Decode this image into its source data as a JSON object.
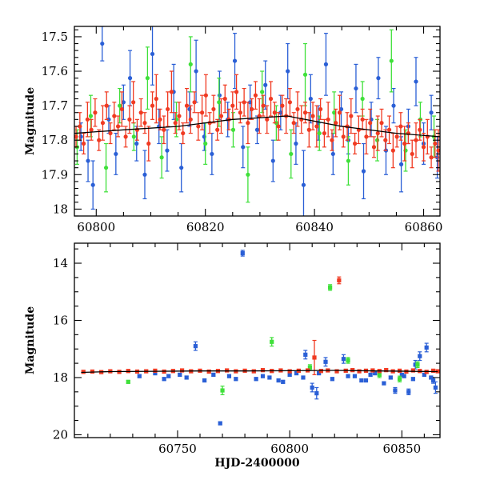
{
  "chart_data": [
    {
      "type": "scatter",
      "panel": "top",
      "title": "",
      "ylabel": "Magnitude",
      "xlabel": "",
      "xlim": [
        60796,
        60863
      ],
      "ylim": [
        18.02,
        17.47
      ],
      "y_inverted": true,
      "xticks": [
        60800,
        60820,
        60840,
        60860
      ],
      "yticks": [
        17.5,
        17.6,
        17.7,
        17.8,
        17.9,
        18.0
      ],
      "ytick_labels": [
        "17.5",
        "17.6",
        "17.7",
        "17.8",
        "17.9",
        "18"
      ],
      "trend": {
        "color": "#000000",
        "x": [
          60796,
          60805,
          60815,
          60825,
          60835,
          60845,
          60855,
          60863
        ],
        "y": [
          17.78,
          17.77,
          17.76,
          17.74,
          17.73,
          17.76,
          17.78,
          17.79
        ]
      },
      "series": [
        {
          "color": "#2a5fd6",
          "x": [
            60797.2,
            60798.5,
            60799.4,
            60801.1,
            60802.3,
            60803.6,
            60805.0,
            60806.2,
            60807.4,
            60808.9,
            60810.3,
            60811.5,
            60813.0,
            60814.2,
            60815.6,
            60817.1,
            60818.3,
            60819.8,
            60821.2,
            60822.6,
            60824.1,
            60825.4,
            60826.9,
            60828.2,
            60829.5,
            60831.0,
            60832.4,
            60833.8,
            60835.1,
            60836.6,
            60838.0,
            60839.3,
            60840.7,
            60842.1,
            60843.4,
            60844.9,
            60846.2,
            60847.6,
            60849.0,
            60850.4,
            60851.7,
            60853.1,
            60854.5,
            60855.9,
            60857.2,
            60858.6,
            60860.0,
            60861.4,
            60862.5
          ],
          "y": [
            17.79,
            17.86,
            17.93,
            17.52,
            17.74,
            17.84,
            17.69,
            17.62,
            17.81,
            17.9,
            17.55,
            17.76,
            17.83,
            17.66,
            17.88,
            17.71,
            17.6,
            17.79,
            17.84,
            17.67,
            17.74,
            17.57,
            17.82,
            17.69,
            17.77,
            17.64,
            17.86,
            17.72,
            17.6,
            17.81,
            17.93,
            17.68,
            17.75,
            17.58,
            17.84,
            17.71,
            17.8,
            17.65,
            17.89,
            17.74,
            17.62,
            17.83,
            17.7,
            17.87,
            17.76,
            17.63,
            17.81,
            17.72,
            17.85
          ],
          "yerr": [
            0.04,
            0.06,
            0.07,
            0.05,
            0.04,
            0.06,
            0.05,
            0.08,
            0.05,
            0.07,
            0.09,
            0.05,
            0.06,
            0.08,
            0.07,
            0.05,
            0.09,
            0.04,
            0.06,
            0.07,
            0.05,
            0.08,
            0.06,
            0.05,
            0.04,
            0.07,
            0.06,
            0.05,
            0.08,
            0.06,
            0.1,
            0.07,
            0.05,
            0.09,
            0.06,
            0.05,
            0.04,
            0.07,
            0.08,
            0.05,
            0.06,
            0.07,
            0.05,
            0.08,
            0.05,
            0.07,
            0.06,
            0.05,
            0.06
          ]
        },
        {
          "color": "#3fe03a",
          "x": [
            60796.5,
            60799.0,
            60801.8,
            60804.3,
            60806.9,
            60809.4,
            60812.0,
            60814.7,
            60817.3,
            60820.0,
            60822.5,
            60825.1,
            60827.8,
            60830.4,
            60833.0,
            60835.7,
            60838.3,
            60840.9,
            60843.6,
            60846.2,
            60848.8,
            60851.5,
            60854.1,
            60856.7,
            60859.4,
            60861.9
          ],
          "y": [
            17.82,
            17.73,
            17.88,
            17.7,
            17.79,
            17.62,
            17.85,
            17.74,
            17.58,
            17.81,
            17.69,
            17.77,
            17.9,
            17.66,
            17.75,
            17.84,
            17.61,
            17.78,
            17.72,
            17.86,
            17.68,
            17.8,
            17.57,
            17.83,
            17.74,
            17.79
          ],
          "yerr": [
            0.05,
            0.06,
            0.07,
            0.05,
            0.04,
            0.09,
            0.06,
            0.05,
            0.08,
            0.06,
            0.07,
            0.05,
            0.08,
            0.06,
            0.05,
            0.07,
            0.09,
            0.05,
            0.06,
            0.07,
            0.05,
            0.06,
            0.09,
            0.06,
            0.05,
            0.06
          ]
        },
        {
          "color": "#f03a22",
          "x": [
            60796.3,
            60797.0,
            60797.7,
            60798.4,
            60799.1,
            60799.8,
            60800.5,
            60801.2,
            60801.9,
            60802.6,
            60803.3,
            60804.0,
            60804.7,
            60805.4,
            60806.1,
            60806.8,
            60807.5,
            60808.2,
            60808.9,
            60809.6,
            60810.3,
            60811.0,
            60811.7,
            60812.4,
            60813.1,
            60813.8,
            60814.5,
            60815.2,
            60815.9,
            60816.6,
            60817.3,
            60818.0,
            60818.7,
            60819.4,
            60820.1,
            60820.8,
            60821.5,
            60822.2,
            60822.9,
            60823.6,
            60824.3,
            60825.0,
            60825.7,
            60826.4,
            60827.1,
            60827.8,
            60828.5,
            60829.2,
            60829.9,
            60830.6,
            60831.3,
            60832.0,
            60832.7,
            60833.4,
            60834.1,
            60834.8,
            60835.5,
            60836.2,
            60836.9,
            60837.6,
            60838.3,
            60839.0,
            60839.7,
            60840.4,
            60841.1,
            60841.8,
            60842.5,
            60843.2,
            60843.9,
            60844.6,
            60845.3,
            60846.0,
            60846.7,
            60847.4,
            60848.1,
            60848.8,
            60849.5,
            60850.2,
            60850.9,
            60851.6,
            60852.3,
            60853.0,
            60853.7,
            60854.4,
            60855.1,
            60855.8,
            60856.5,
            60857.2,
            60857.9,
            60858.6,
            60859.3,
            60860.0,
            60860.7,
            60861.4,
            60862.1,
            60862.7
          ],
          "y": [
            17.79,
            17.76,
            17.81,
            17.74,
            17.77,
            17.72,
            17.8,
            17.75,
            17.7,
            17.78,
            17.73,
            17.76,
            17.71,
            17.79,
            17.74,
            17.69,
            17.77,
            17.72,
            17.75,
            17.81,
            17.7,
            17.68,
            17.74,
            17.77,
            17.71,
            17.66,
            17.75,
            17.73,
            17.78,
            17.7,
            17.74,
            17.69,
            17.76,
            17.72,
            17.67,
            17.75,
            17.71,
            17.77,
            17.73,
            17.68,
            17.74,
            17.7,
            17.66,
            17.72,
            17.69,
            17.75,
            17.71,
            17.67,
            17.73,
            17.7,
            17.74,
            17.68,
            17.72,
            17.76,
            17.7,
            17.73,
            17.69,
            17.75,
            17.71,
            17.74,
            17.72,
            17.77,
            17.73,
            17.76,
            17.71,
            17.78,
            17.74,
            17.8,
            17.75,
            17.72,
            17.79,
            17.76,
            17.73,
            17.81,
            17.77,
            17.74,
            17.79,
            17.75,
            17.82,
            17.78,
            17.75,
            17.8,
            17.77,
            17.83,
            17.79,
            17.76,
            17.81,
            17.78,
            17.84,
            17.8,
            17.77,
            17.82,
            17.79,
            17.85,
            17.81,
            17.83
          ],
          "yerr": [
            0.03,
            0.04,
            0.03,
            0.05,
            0.03,
            0.04,
            0.03,
            0.05,
            0.04,
            0.03,
            0.04,
            0.03,
            0.05,
            0.03,
            0.04,
            0.06,
            0.03,
            0.04,
            0.03,
            0.05,
            0.04,
            0.07,
            0.03,
            0.04,
            0.05,
            0.06,
            0.03,
            0.04,
            0.03,
            0.05,
            0.04,
            0.03,
            0.04,
            0.05,
            0.06,
            0.03,
            0.04,
            0.03,
            0.05,
            0.04,
            0.03,
            0.04,
            0.05,
            0.03,
            0.04,
            0.06,
            0.03,
            0.04,
            0.05,
            0.03,
            0.04,
            0.05,
            0.03,
            0.04,
            0.03,
            0.05,
            0.04,
            0.03,
            0.05,
            0.04,
            0.03,
            0.05,
            0.04,
            0.06,
            0.03,
            0.04,
            0.05,
            0.03,
            0.04,
            0.05,
            0.03,
            0.04,
            0.05,
            0.03,
            0.04,
            0.03,
            0.05,
            0.04,
            0.03,
            0.05,
            0.04,
            0.03,
            0.04,
            0.05,
            0.03,
            0.04,
            0.05,
            0.03,
            0.04,
            0.05,
            0.03,
            0.04,
            0.05,
            0.03,
            0.04,
            0.06
          ]
        }
      ]
    },
    {
      "type": "scatter",
      "panel": "bottom",
      "title": "",
      "ylabel": "Magnitude",
      "xlabel": "HJD-2400000",
      "xlim": [
        60704,
        60867
      ],
      "ylim": [
        20.1,
        13.3
      ],
      "y_inverted": true,
      "xticks": [
        60750,
        60800,
        60850
      ],
      "yticks": [
        14,
        16,
        18,
        20
      ],
      "ytick_labels": [
        "14",
        "16",
        "18",
        "20"
      ],
      "trend": {
        "color": "#000000",
        "x": [
          60707,
          60720,
          60740,
          60760,
          60780,
          60800,
          60820,
          60840,
          60866
        ],
        "y": [
          17.82,
          17.79,
          17.78,
          17.77,
          17.77,
          17.76,
          17.75,
          17.77,
          17.79
        ]
      },
      "series": [
        {
          "color": "#2a5fd6",
          "x": [
            60779,
            60769,
            60758,
            60733,
            60744,
            60751,
            60762,
            60773,
            60785,
            60791,
            60797,
            60803,
            60807,
            60810,
            60812,
            60816,
            60824,
            60829,
            60834,
            60838,
            60842,
            60847,
            60850,
            60853,
            60856,
            60858,
            60861,
            60864,
            60865,
            60740,
            60746,
            60754,
            60766,
            60776,
            60788,
            60795,
            60800,
            60806,
            60813,
            60819,
            60826,
            60832,
            60836,
            60845,
            60851,
            60855,
            60860,
            60863
          ],
          "y": [
            13.65,
            19.6,
            16.9,
            17.95,
            18.05,
            17.9,
            18.1,
            17.95,
            18.05,
            18.0,
            18.15,
            17.85,
            17.2,
            18.35,
            18.55,
            17.45,
            17.35,
            17.95,
            18.1,
            17.85,
            18.2,
            18.45,
            17.9,
            18.5,
            17.55,
            17.25,
            16.95,
            18.1,
            18.35,
            17.85,
            17.95,
            18.0,
            17.9,
            18.05,
            17.95,
            18.1,
            17.9,
            18.0,
            17.85,
            18.05,
            17.95,
            18.1,
            17.9,
            18.0,
            17.95,
            18.05,
            17.9,
            18.0
          ],
          "yerr": [
            0.1,
            0.05,
            0.15,
            0.05,
            0.05,
            0.05,
            0.05,
            0.05,
            0.05,
            0.05,
            0.05,
            0.05,
            0.15,
            0.15,
            0.2,
            0.15,
            0.15,
            0.05,
            0.05,
            0.05,
            0.05,
            0.1,
            0.05,
            0.1,
            0.15,
            0.15,
            0.15,
            0.1,
            0.2,
            0.05,
            0.05,
            0.05,
            0.05,
            0.05,
            0.05,
            0.05,
            0.05,
            0.05,
            0.05,
            0.05,
            0.05,
            0.05,
            0.05,
            0.05,
            0.05,
            0.05,
            0.05,
            0.05
          ]
        },
        {
          "color": "#3fe03a",
          "x": [
            60818,
            60728,
            60770,
            60792,
            60809,
            60826,
            60840,
            60849,
            60857
          ],
          "y": [
            14.85,
            18.15,
            18.45,
            16.75,
            17.65,
            17.4,
            17.9,
            18.05,
            17.55
          ],
          "yerr": [
            0.1,
            0.05,
            0.15,
            0.15,
            0.1,
            0.1,
            0.1,
            0.1,
            0.1
          ]
        },
        {
          "color": "#f03a22",
          "x": [
            60708,
            60712,
            60716,
            60720,
            60724,
            60728,
            60732,
            60736,
            60740,
            60744,
            60748,
            60752,
            60756,
            60760,
            60764,
            60768,
            60772,
            60776,
            60780,
            60784,
            60788,
            60792,
            60796,
            60800,
            60804,
            60808,
            60811,
            60814,
            60817,
            60821,
            60822,
            60825,
            60828,
            60831,
            60834,
            60837,
            60840,
            60843,
            60846,
            60849,
            60852,
            60855,
            60858,
            60861,
            60864,
            60866
          ],
          "y": [
            17.8,
            17.79,
            17.81,
            17.78,
            17.8,
            17.77,
            17.79,
            17.78,
            17.76,
            17.79,
            17.77,
            17.75,
            17.78,
            17.76,
            17.79,
            17.77,
            17.75,
            17.78,
            17.76,
            17.78,
            17.74,
            17.77,
            17.75,
            17.78,
            17.76,
            17.75,
            17.3,
            17.77,
            17.75,
            17.78,
            14.6,
            17.76,
            17.74,
            17.78,
            17.76,
            17.75,
            17.77,
            17.74,
            17.78,
            17.76,
            17.79,
            17.75,
            17.77,
            17.8,
            17.76,
            17.78
          ],
          "yerr": [
            0.05,
            0.05,
            0.05,
            0.05,
            0.05,
            0.05,
            0.05,
            0.05,
            0.05,
            0.05,
            0.05,
            0.05,
            0.05,
            0.05,
            0.05,
            0.05,
            0.05,
            0.05,
            0.05,
            0.05,
            0.05,
            0.05,
            0.05,
            0.05,
            0.05,
            0.05,
            0.6,
            0.05,
            0.05,
            0.05,
            0.12,
            0.05,
            0.05,
            0.05,
            0.05,
            0.05,
            0.05,
            0.05,
            0.05,
            0.05,
            0.05,
            0.05,
            0.05,
            0.05,
            0.05,
            0.05
          ]
        }
      ]
    }
  ]
}
